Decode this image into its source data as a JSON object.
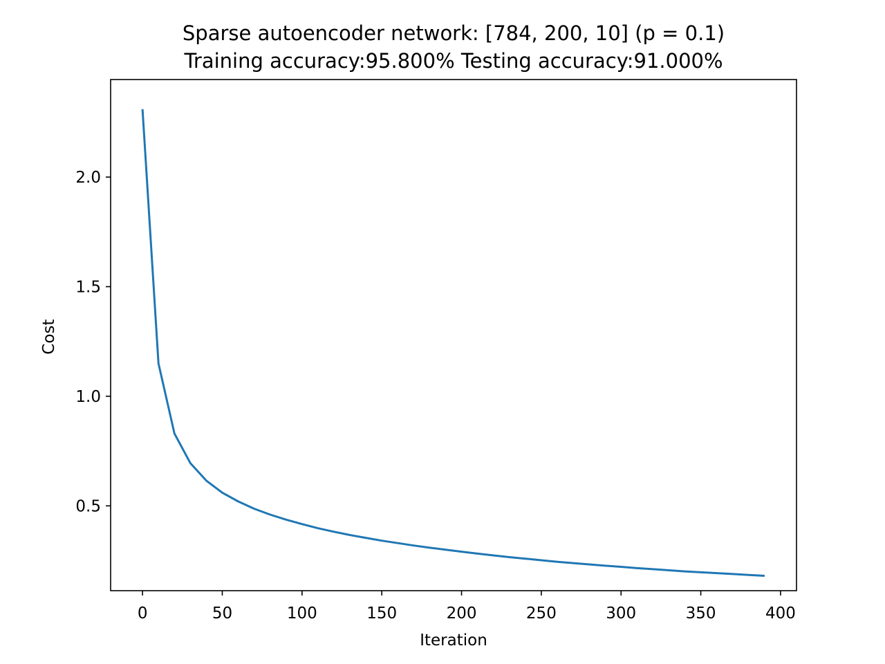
{
  "chart_data": {
    "type": "line",
    "title": "Sparse autoencoder network: [784, 200, 10] (p = 0.1)",
    "subtitle": "Training accuracy:95.800% Testing accuracy:91.000%",
    "xlabel": "Iteration",
    "ylabel": "Cost",
    "xlim": [
      -20,
      410
    ],
    "ylim": [
      0.113,
      2.445
    ],
    "xticks": [
      0,
      50,
      100,
      150,
      200,
      250,
      300,
      350,
      400
    ],
    "xtick_labels": [
      "0",
      "50",
      "100",
      "150",
      "200",
      "250",
      "300",
      "350",
      "400"
    ],
    "yticks": [
      0.5,
      1.0,
      1.5,
      2.0
    ],
    "ytick_labels": [
      "0.5",
      "1.0",
      "1.5",
      "2.0"
    ],
    "grid": false,
    "series": [
      {
        "color": "#1f77b4",
        "x": [
          0,
          10,
          20,
          30,
          40,
          50,
          60,
          70,
          80,
          90,
          100,
          110,
          120,
          130,
          140,
          150,
          160,
          170,
          180,
          190,
          200,
          210,
          220,
          230,
          240,
          250,
          260,
          270,
          280,
          290,
          300,
          310,
          320,
          330,
          340,
          350,
          360,
          370,
          380,
          390
        ],
        "y": [
          2.31,
          1.15,
          0.83,
          0.695,
          0.615,
          0.56,
          0.52,
          0.487,
          0.46,
          0.437,
          0.417,
          0.398,
          0.382,
          0.367,
          0.354,
          0.341,
          0.33,
          0.319,
          0.309,
          0.3,
          0.291,
          0.282,
          0.274,
          0.266,
          0.259,
          0.252,
          0.245,
          0.239,
          0.233,
          0.227,
          0.222,
          0.216,
          0.211,
          0.206,
          0.201,
          0.197,
          0.193,
          0.189,
          0.185,
          0.181
        ]
      }
    ]
  }
}
